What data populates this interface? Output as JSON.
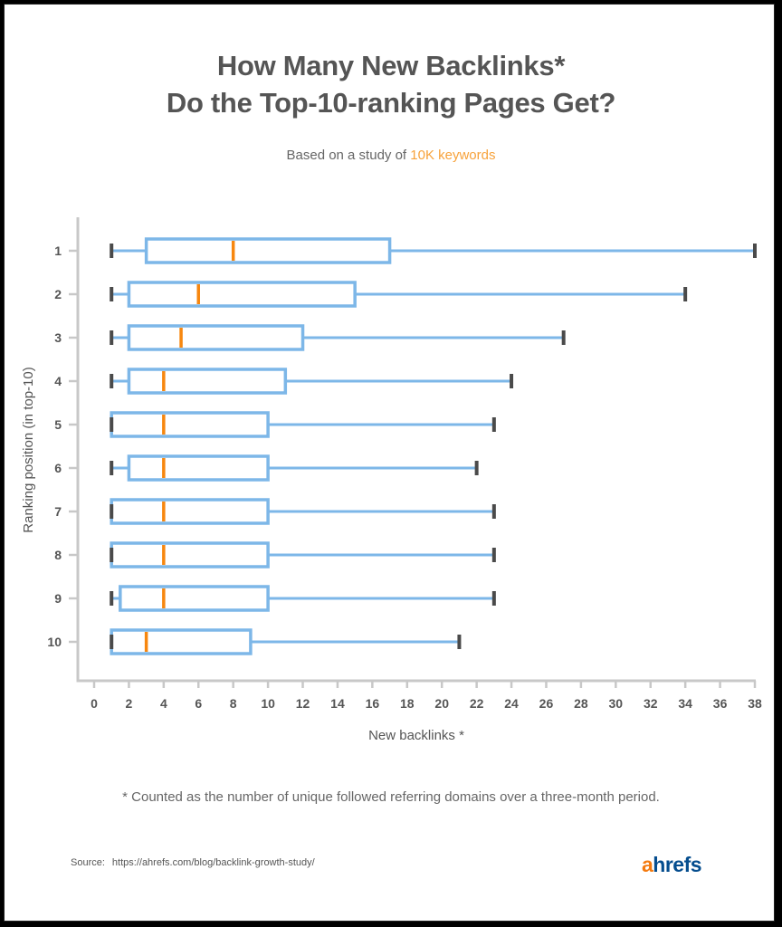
{
  "header": {
    "title_line1": "How Many New Backlinks*",
    "title_line2": "Do the Top-10-ranking Pages Get?",
    "subtitle_prefix": "Based on a study of ",
    "subtitle_highlight": "10K keywords"
  },
  "footer": {
    "footnote": "* Counted as the number of unique followed referring domains over a three-month period.",
    "source_label": "Source:",
    "source_url": "https://ahrefs.com/blog/backlink-growth-study/",
    "logo_a": "a",
    "logo_rest": "hrefs"
  },
  "colors": {
    "box": "#7db7e8",
    "median": "#f7870f",
    "whisker_cap": "#4a4a4a",
    "axis": "#c8c8c8",
    "text": "#555555",
    "highlight": "#f7a23b",
    "logo_blue": "#054d8e",
    "logo_orange": "#f47a0f"
  },
  "chart_data": {
    "type": "boxplot",
    "orientation": "horizontal",
    "title": "How Many New Backlinks* Do the Top-10-ranking Pages Get?",
    "subtitle": "Based on a study of 10K keywords",
    "xlabel": "New backlinks *",
    "ylabel": "Ranking position (in top-10)",
    "xlim": [
      0,
      38
    ],
    "xticks": [
      0,
      2,
      4,
      6,
      8,
      10,
      12,
      14,
      16,
      18,
      20,
      22,
      24,
      26,
      28,
      30,
      32,
      34,
      36,
      38
    ],
    "grid": false,
    "categories": [
      "1",
      "2",
      "3",
      "4",
      "5",
      "6",
      "7",
      "8",
      "9",
      "10"
    ],
    "series": [
      {
        "name": "1",
        "min": 1,
        "q1": 3,
        "median": 8,
        "q3": 17,
        "max": 38
      },
      {
        "name": "2",
        "min": 1,
        "q1": 2,
        "median": 6,
        "q3": 15,
        "max": 34
      },
      {
        "name": "3",
        "min": 1,
        "q1": 2,
        "median": 5,
        "q3": 12,
        "max": 27
      },
      {
        "name": "4",
        "min": 1,
        "q1": 2,
        "median": 4,
        "q3": 11,
        "max": 24
      },
      {
        "name": "5",
        "min": 1,
        "q1": 1,
        "median": 4,
        "q3": 10,
        "max": 23
      },
      {
        "name": "6",
        "min": 1,
        "q1": 2,
        "median": 4,
        "q3": 10,
        "max": 22
      },
      {
        "name": "7",
        "min": 1,
        "q1": 1,
        "median": 4,
        "q3": 10,
        "max": 23
      },
      {
        "name": "8",
        "min": 1,
        "q1": 1,
        "median": 4,
        "q3": 10,
        "max": 23
      },
      {
        "name": "9",
        "min": 1,
        "q1": 1.5,
        "median": 4,
        "q3": 10,
        "max": 23
      },
      {
        "name": "10",
        "min": 1,
        "q1": 1,
        "median": 3,
        "q3": 9,
        "max": 21
      }
    ]
  }
}
